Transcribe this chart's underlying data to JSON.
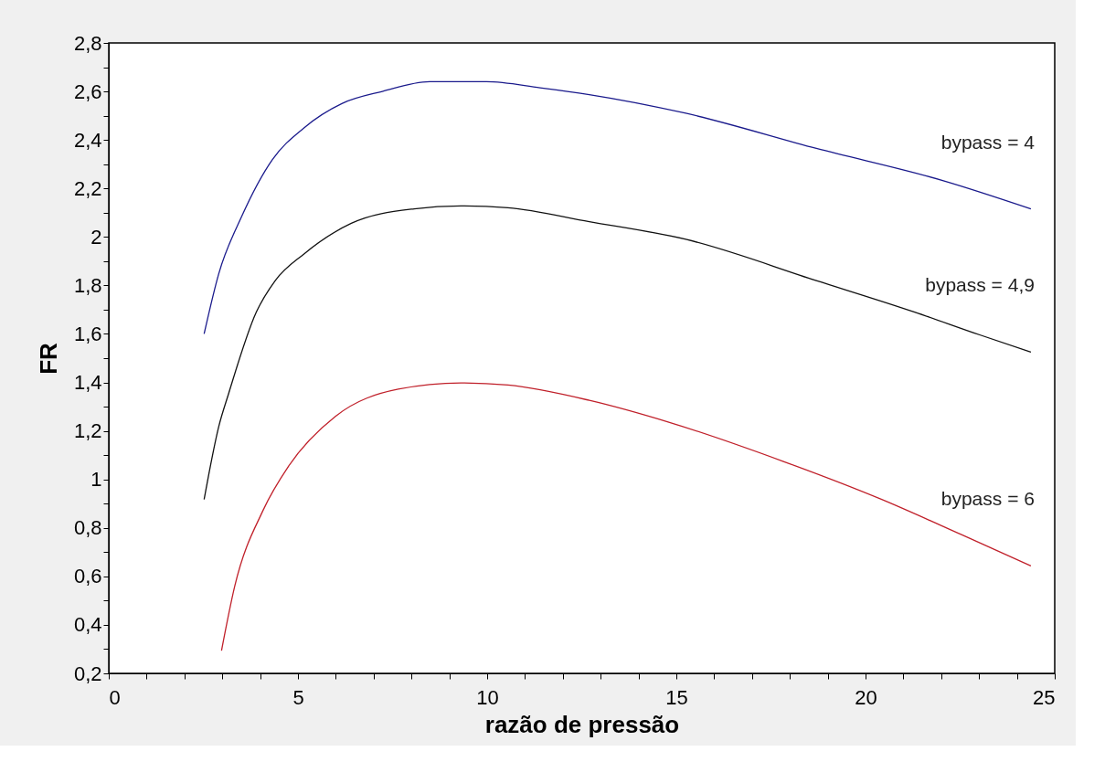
{
  "chart_data": {
    "type": "line",
    "xlabel": "razão de pressão",
    "ylabel": "FR",
    "xlim": [
      0,
      25
    ],
    "ylim": [
      0.2,
      2.8
    ],
    "xticks": [
      0,
      {
        "value": 1,
        "label": null
      },
      {
        "value": 2,
        "label": null
      },
      {
        "value": 3,
        "label": null
      },
      {
        "value": 4,
        "label": null
      },
      5,
      {
        "value": 6,
        "label": null
      },
      {
        "value": 7,
        "label": null
      },
      {
        "value": 8,
        "label": null
      },
      {
        "value": 9,
        "label": null
      },
      10,
      {
        "value": 11,
        "label": null
      },
      {
        "value": 12,
        "label": null
      },
      {
        "value": 13,
        "label": null
      },
      {
        "value": 14,
        "label": null
      },
      15,
      {
        "value": 16,
        "label": null
      },
      {
        "value": 17,
        "label": null
      },
      {
        "value": 18,
        "label": null
      },
      {
        "value": 19,
        "label": null
      },
      20,
      {
        "value": 21,
        "label": null
      },
      {
        "value": 22,
        "label": null
      },
      {
        "value": 23,
        "label": null
      },
      {
        "value": 24,
        "label": null
      },
      25
    ],
    "yticks": [
      {
        "value": 0.2,
        "label": "0,2"
      },
      {
        "value": 0.3,
        "label": null
      },
      {
        "value": 0.4,
        "label": "0,4"
      },
      {
        "value": 0.5,
        "label": null
      },
      {
        "value": 0.6,
        "label": "0,6"
      },
      {
        "value": 0.7,
        "label": null
      },
      {
        "value": 0.8,
        "label": "0,8"
      },
      {
        "value": 0.9,
        "label": null
      },
      1,
      {
        "value": 1.1,
        "label": null
      },
      {
        "value": 1.2,
        "label": "1,2"
      },
      {
        "value": 1.3,
        "label": null
      },
      {
        "value": 1.4,
        "label": "1,4"
      },
      {
        "value": 1.5,
        "label": null
      },
      {
        "value": 1.6,
        "label": "1,6"
      },
      {
        "value": 1.7,
        "label": null
      },
      {
        "value": 1.8,
        "label": "1,8"
      },
      {
        "value": 1.9,
        "label": null
      },
      2,
      {
        "value": 2.1,
        "label": null
      },
      {
        "value": 2.2,
        "label": "2,2"
      },
      {
        "value": 2.3,
        "label": null
      },
      {
        "value": 2.4,
        "label": "2,4"
      },
      {
        "value": 2.5,
        "label": null
      },
      {
        "value": 2.6,
        "label": "2,6"
      },
      {
        "value": 2.7,
        "label": null
      },
      {
        "value": 2.8,
        "label": "2,8"
      }
    ],
    "grid": false,
    "marker": "none",
    "line_style": "solid",
    "series": [
      {
        "name": "bypass = 4",
        "color": "#1a1a8c",
        "x": [
          2.52,
          2.91,
          3.5,
          4.33,
          5.16,
          6.16,
          7.23,
          8.48,
          9.98,
          11.4,
          12.7,
          15.25,
          18.7,
          22.1,
          24.37
        ],
        "values": [
          1.6,
          1.85,
          2.08,
          2.32,
          2.45,
          2.55,
          2.6,
          2.64,
          2.64,
          2.615,
          2.587,
          2.51,
          2.365,
          2.23,
          2.116
        ]
      },
      {
        "name": "bypass = 4,9",
        "color": "#111111",
        "x": [
          2.52,
          2.91,
          3.17,
          3.9,
          4.4,
          5.16,
          6.41,
          8.07,
          9.31,
          10.55,
          12.7,
          15.25,
          18.7,
          21.3,
          23,
          24.37
        ],
        "values": [
          0.917,
          1.22,
          1.355,
          1.69,
          1.82,
          1.93,
          2.056,
          2.116,
          2.128,
          2.12,
          2.063,
          1.99,
          1.82,
          1.69,
          1.597,
          1.525
        ]
      },
      {
        "name": "bypass = 6",
        "color": "#c0202a",
        "x": [
          2.98,
          3.33,
          4.08,
          4.75,
          5.99,
          7.65,
          9.31,
          10.55,
          12.7,
          14.82,
          17.83,
          20.4,
          22.55,
          24.37
        ],
        "values": [
          0.294,
          0.56,
          0.873,
          1.054,
          1.26,
          1.372,
          1.398,
          1.389,
          1.326,
          1.235,
          1.074,
          0.919,
          0.771,
          0.643
        ]
      }
    ]
  }
}
